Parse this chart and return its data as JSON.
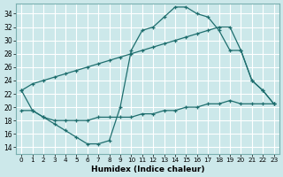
{
  "xlabel": "Humidex (Indice chaleur)",
  "bg_color": "#cce8ea",
  "grid_color": "#ffffff",
  "line_color": "#1e6e6e",
  "xlim": [
    -0.5,
    23.5
  ],
  "ylim": [
    13.0,
    35.5
  ],
  "xticks": [
    0,
    1,
    2,
    3,
    4,
    5,
    6,
    7,
    8,
    9,
    10,
    11,
    12,
    13,
    14,
    15,
    16,
    17,
    18,
    19,
    20,
    21,
    22,
    23
  ],
  "yticks": [
    14,
    16,
    18,
    20,
    22,
    24,
    26,
    28,
    30,
    32,
    34
  ],
  "curve1_x": [
    0,
    1,
    2,
    3,
    4,
    5,
    6,
    7,
    8,
    9,
    10,
    11,
    12,
    13,
    14,
    15,
    16,
    17,
    18,
    19,
    20,
    21,
    22,
    23
  ],
  "curve1_y": [
    22.5,
    19.5,
    18.5,
    17.5,
    16.5,
    15.5,
    14.5,
    14.5,
    15.0,
    20.0,
    28.5,
    31.5,
    32.0,
    33.5,
    35.0,
    35.0,
    34.0,
    33.5,
    31.5,
    28.5,
    28.5,
    24.0,
    22.5,
    20.5
  ],
  "curve2_x": [
    0,
    1,
    2,
    3,
    4,
    5,
    6,
    7,
    8,
    9,
    10,
    11,
    12,
    13,
    14,
    15,
    16,
    17,
    18,
    19,
    20,
    21,
    22,
    23
  ],
  "curve2_y": [
    22.5,
    23.5,
    24.0,
    24.5,
    25.0,
    25.5,
    26.0,
    26.5,
    27.0,
    27.5,
    28.0,
    28.5,
    29.0,
    29.5,
    30.0,
    30.5,
    31.0,
    31.5,
    32.0,
    32.0,
    28.5,
    24.0,
    22.5,
    20.5
  ],
  "curve3_x": [
    0,
    1,
    2,
    3,
    4,
    5,
    6,
    7,
    8,
    9,
    10,
    11,
    12,
    13,
    14,
    15,
    16,
    17,
    18,
    19,
    20,
    21,
    22,
    23
  ],
  "curve3_y": [
    19.5,
    19.5,
    18.5,
    18.0,
    18.0,
    18.0,
    18.0,
    18.5,
    18.5,
    18.5,
    18.5,
    19.0,
    19.0,
    19.5,
    19.5,
    20.0,
    20.0,
    20.5,
    20.5,
    21.0,
    20.5,
    20.5,
    20.5,
    20.5
  ]
}
